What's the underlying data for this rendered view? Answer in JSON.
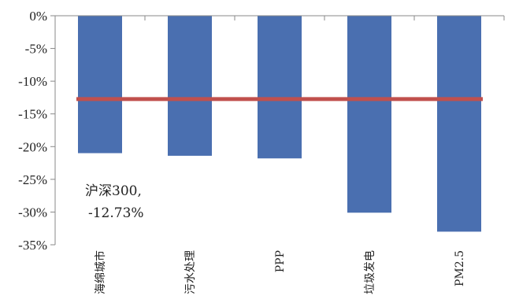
{
  "chart_data": {
    "type": "bar",
    "categories": [
      "海绵城市",
      "污水处理",
      "PPP",
      "垃圾发电",
      "PM2.5"
    ],
    "series": [
      {
        "values": [
          -21.0,
          -21.4,
          -21.8,
          -30.1,
          -33.0
        ],
        "color": "#4a6fb0"
      }
    ],
    "reference_line": {
      "value": -12.73,
      "color": "#c0504d"
    },
    "annotation": {
      "line1": "沪深300,",
      "line2": "-12.73%"
    },
    "y_ticks": [
      "0%",
      "-5%",
      "-10%",
      "-15%",
      "-20%",
      "-25%",
      "-30%",
      "-35%"
    ],
    "ylim": [
      -35,
      0
    ],
    "grid": false,
    "legend": "none"
  }
}
